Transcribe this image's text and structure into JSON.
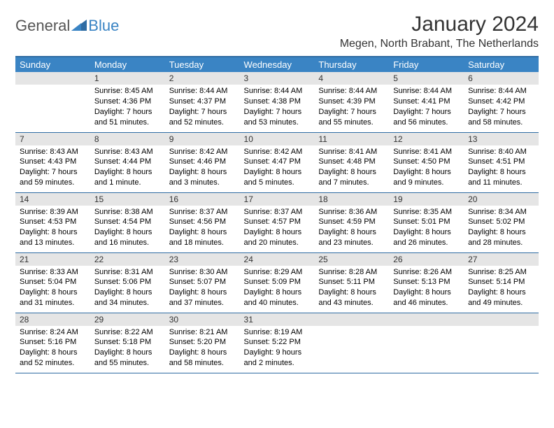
{
  "logo": {
    "general": "General",
    "blue": "Blue"
  },
  "header": {
    "month_title": "January 2024",
    "location": "Megen, North Brabant, The Netherlands"
  },
  "colors": {
    "header_bg": "#3a84c4",
    "header_border": "#2f6ca3",
    "daynum_bg": "#e5e5e5",
    "text": "#000000",
    "page_bg": "#ffffff"
  },
  "weekdays": [
    "Sunday",
    "Monday",
    "Tuesday",
    "Wednesday",
    "Thursday",
    "Friday",
    "Saturday"
  ],
  "grid": {
    "start_offset": 1,
    "days": [
      {
        "n": 1,
        "sr": "8:45 AM",
        "ss": "4:36 PM",
        "dl": "7 hours and 51 minutes."
      },
      {
        "n": 2,
        "sr": "8:44 AM",
        "ss": "4:37 PM",
        "dl": "7 hours and 52 minutes."
      },
      {
        "n": 3,
        "sr": "8:44 AM",
        "ss": "4:38 PM",
        "dl": "7 hours and 53 minutes."
      },
      {
        "n": 4,
        "sr": "8:44 AM",
        "ss": "4:39 PM",
        "dl": "7 hours and 55 minutes."
      },
      {
        "n": 5,
        "sr": "8:44 AM",
        "ss": "4:41 PM",
        "dl": "7 hours and 56 minutes."
      },
      {
        "n": 6,
        "sr": "8:44 AM",
        "ss": "4:42 PM",
        "dl": "7 hours and 58 minutes."
      },
      {
        "n": 7,
        "sr": "8:43 AM",
        "ss": "4:43 PM",
        "dl": "7 hours and 59 minutes."
      },
      {
        "n": 8,
        "sr": "8:43 AM",
        "ss": "4:44 PM",
        "dl": "8 hours and 1 minute."
      },
      {
        "n": 9,
        "sr": "8:42 AM",
        "ss": "4:46 PM",
        "dl": "8 hours and 3 minutes."
      },
      {
        "n": 10,
        "sr": "8:42 AM",
        "ss": "4:47 PM",
        "dl": "8 hours and 5 minutes."
      },
      {
        "n": 11,
        "sr": "8:41 AM",
        "ss": "4:48 PM",
        "dl": "8 hours and 7 minutes."
      },
      {
        "n": 12,
        "sr": "8:41 AM",
        "ss": "4:50 PM",
        "dl": "8 hours and 9 minutes."
      },
      {
        "n": 13,
        "sr": "8:40 AM",
        "ss": "4:51 PM",
        "dl": "8 hours and 11 minutes."
      },
      {
        "n": 14,
        "sr": "8:39 AM",
        "ss": "4:53 PM",
        "dl": "8 hours and 13 minutes."
      },
      {
        "n": 15,
        "sr": "8:38 AM",
        "ss": "4:54 PM",
        "dl": "8 hours and 16 minutes."
      },
      {
        "n": 16,
        "sr": "8:37 AM",
        "ss": "4:56 PM",
        "dl": "8 hours and 18 minutes."
      },
      {
        "n": 17,
        "sr": "8:37 AM",
        "ss": "4:57 PM",
        "dl": "8 hours and 20 minutes."
      },
      {
        "n": 18,
        "sr": "8:36 AM",
        "ss": "4:59 PM",
        "dl": "8 hours and 23 minutes."
      },
      {
        "n": 19,
        "sr": "8:35 AM",
        "ss": "5:01 PM",
        "dl": "8 hours and 26 minutes."
      },
      {
        "n": 20,
        "sr": "8:34 AM",
        "ss": "5:02 PM",
        "dl": "8 hours and 28 minutes."
      },
      {
        "n": 21,
        "sr": "8:33 AM",
        "ss": "5:04 PM",
        "dl": "8 hours and 31 minutes."
      },
      {
        "n": 22,
        "sr": "8:31 AM",
        "ss": "5:06 PM",
        "dl": "8 hours and 34 minutes."
      },
      {
        "n": 23,
        "sr": "8:30 AM",
        "ss": "5:07 PM",
        "dl": "8 hours and 37 minutes."
      },
      {
        "n": 24,
        "sr": "8:29 AM",
        "ss": "5:09 PM",
        "dl": "8 hours and 40 minutes."
      },
      {
        "n": 25,
        "sr": "8:28 AM",
        "ss": "5:11 PM",
        "dl": "8 hours and 43 minutes."
      },
      {
        "n": 26,
        "sr": "8:26 AM",
        "ss": "5:13 PM",
        "dl": "8 hours and 46 minutes."
      },
      {
        "n": 27,
        "sr": "8:25 AM",
        "ss": "5:14 PM",
        "dl": "8 hours and 49 minutes."
      },
      {
        "n": 28,
        "sr": "8:24 AM",
        "ss": "5:16 PM",
        "dl": "8 hours and 52 minutes."
      },
      {
        "n": 29,
        "sr": "8:22 AM",
        "ss": "5:18 PM",
        "dl": "8 hours and 55 minutes."
      },
      {
        "n": 30,
        "sr": "8:21 AM",
        "ss": "5:20 PM",
        "dl": "8 hours and 58 minutes."
      },
      {
        "n": 31,
        "sr": "8:19 AM",
        "ss": "5:22 PM",
        "dl": "9 hours and 2 minutes."
      }
    ]
  },
  "labels": {
    "sunrise": "Sunrise:",
    "sunset": "Sunset:",
    "daylight": "Daylight:"
  }
}
